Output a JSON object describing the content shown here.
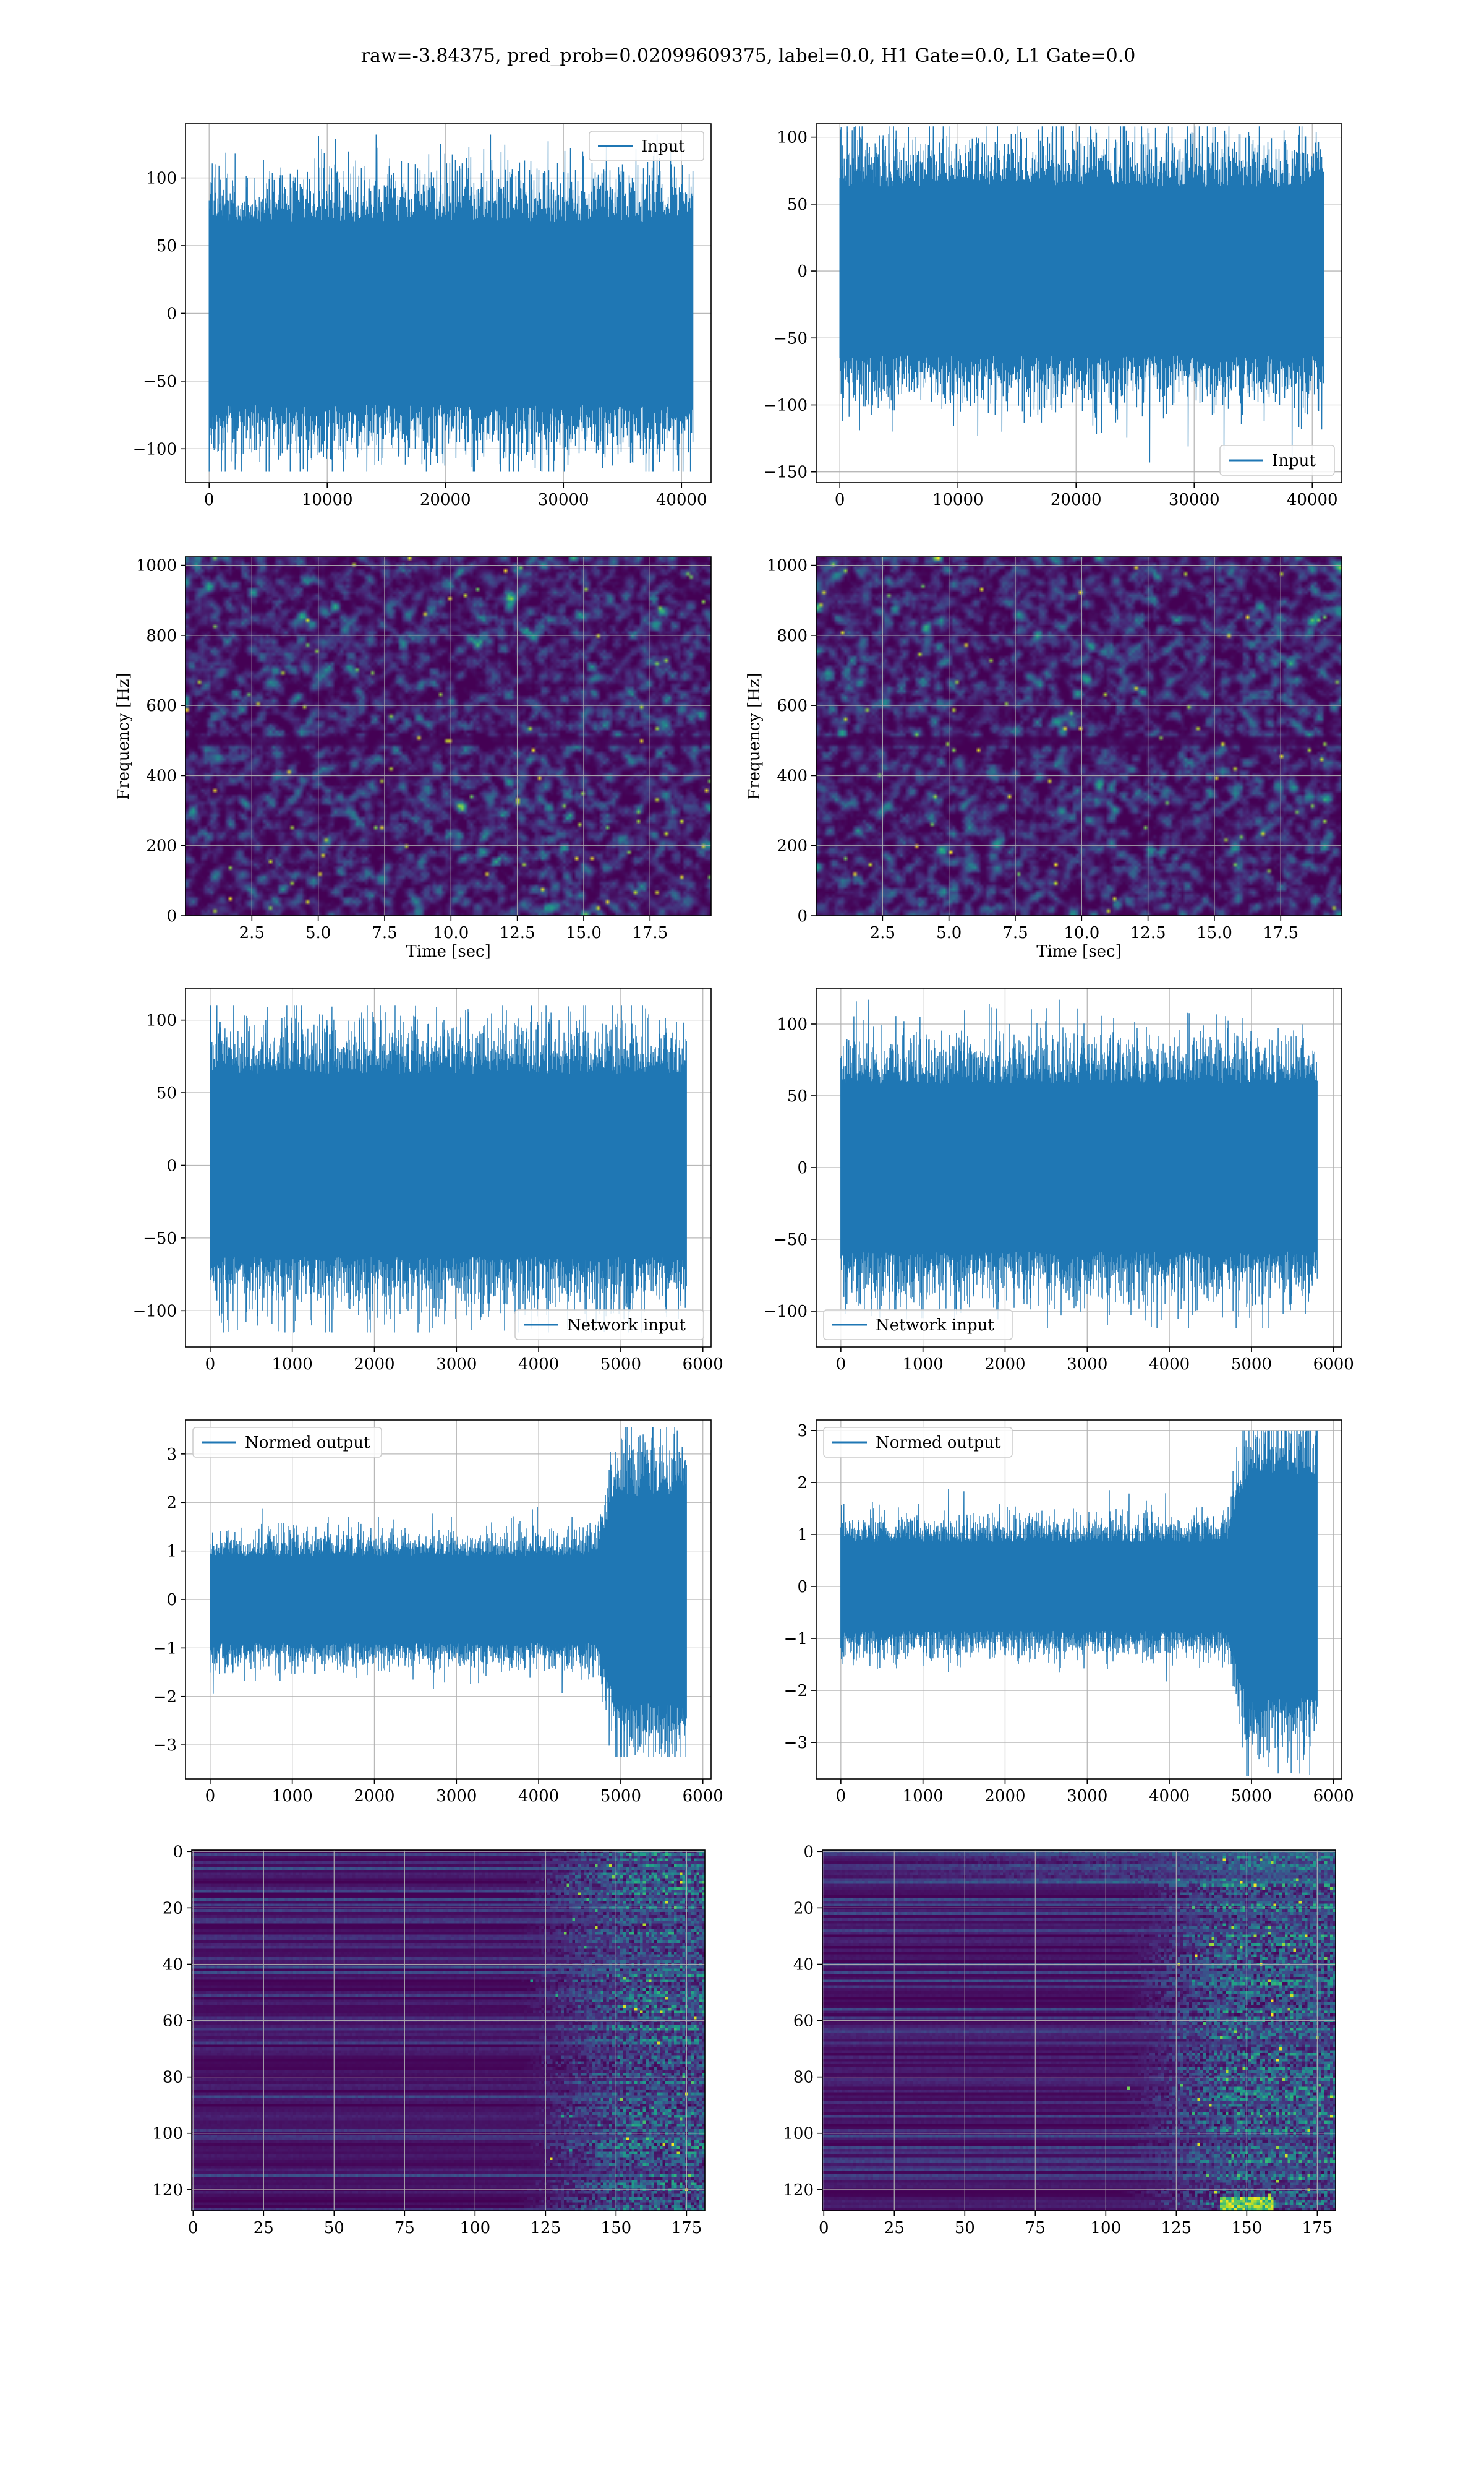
{
  "figure": {
    "suptitle": "raw=-3.84375, pred_prob=0.02099609375, label=0.0, H1 Gate=0.0, L1 Gate=0.0"
  },
  "colors": {
    "line": "#1f77b4",
    "viridis_low": "#440154",
    "viridis_mid": "#21918c",
    "viridis_high": "#fde725",
    "grid": "#b0b0b0"
  },
  "chart_data": [
    {
      "id": "h1-input",
      "type": "line",
      "series": [
        {
          "name": "Input"
        }
      ],
      "legend": "upper right",
      "grid": true,
      "xlim": [
        -2000,
        42500
      ],
      "ylim": [
        -125,
        140
      ],
      "xticks": [
        0,
        10000,
        20000,
        30000,
        40000
      ],
      "xticklabels": [
        "0",
        "10000",
        "20000",
        "30000",
        "40000"
      ],
      "yticks": [
        -100,
        -50,
        0,
        50,
        100
      ],
      "yticklabels": [
        "−100",
        "−50",
        "0",
        "50",
        "100"
      ],
      "n_samples": 40960,
      "noise_sigma": 30,
      "peak_max": 132,
      "peak_min": -117
    },
    {
      "id": "l1-input",
      "type": "line",
      "series": [
        {
          "name": "Input"
        }
      ],
      "legend": "lower right",
      "grid": true,
      "xlim": [
        -2000,
        42500
      ],
      "ylim": [
        -158,
        110
      ],
      "xticks": [
        0,
        10000,
        20000,
        30000,
        40000
      ],
      "xticklabels": [
        "0",
        "10000",
        "20000",
        "30000",
        "40000"
      ],
      "yticks": [
        -150,
        -100,
        -50,
        0,
        50,
        100
      ],
      "yticklabels": [
        "−150",
        "−100",
        "−50",
        "0",
        "50",
        "100"
      ],
      "n_samples": 40960,
      "noise_sigma": 28,
      "peak_max": 108,
      "peak_min": -143
    },
    {
      "id": "h1-spectrogram",
      "type": "heatmap",
      "grid": true,
      "xlabel": "Time [sec]",
      "ylabel": "Frequency [Hz]",
      "xlim": [
        0,
        19.8
      ],
      "ylim": [
        0,
        1024
      ],
      "xticks": [
        2.5,
        5.0,
        7.5,
        10.0,
        12.5,
        15.0,
        17.5
      ],
      "xticklabels": [
        "2.5",
        "5.0",
        "7.5",
        "10.0",
        "12.5",
        "15.0",
        "17.5"
      ],
      "yticks": [
        0,
        200,
        400,
        600,
        800,
        1000
      ],
      "yticklabels": [
        "0",
        "200",
        "400",
        "600",
        "800",
        "1000"
      ],
      "dark_band_hz": 500
    },
    {
      "id": "l1-spectrogram",
      "type": "heatmap",
      "grid": true,
      "xlabel": "Time [sec]",
      "ylabel": "Frequency [Hz]",
      "xlim": [
        0,
        19.8
      ],
      "ylim": [
        0,
        1024
      ],
      "xticks": [
        2.5,
        5.0,
        7.5,
        10.0,
        12.5,
        15.0,
        17.5
      ],
      "xticklabels": [
        "2.5",
        "5.0",
        "7.5",
        "10.0",
        "12.5",
        "15.0",
        "17.5"
      ],
      "yticks": [
        0,
        200,
        400,
        600,
        800,
        1000
      ],
      "yticklabels": [
        "0",
        "200",
        "400",
        "600",
        "800",
        "1000"
      ],
      "dark_band_hz": 500
    },
    {
      "id": "h1-network-input",
      "type": "line",
      "series": [
        {
          "name": "Network input"
        }
      ],
      "legend": "lower right",
      "grid": true,
      "xlim": [
        -300,
        6100
      ],
      "ylim": [
        -125,
        122
      ],
      "xticks": [
        0,
        1000,
        2000,
        3000,
        4000,
        5000,
        6000
      ],
      "xticklabels": [
        "0",
        "1000",
        "2000",
        "3000",
        "4000",
        "5000",
        "6000"
      ],
      "yticks": [
        -100,
        -50,
        0,
        50,
        100
      ],
      "yticklabels": [
        "−100",
        "−50",
        "0",
        "50",
        "100"
      ],
      "n_samples": 5800,
      "noise_sigma": 28,
      "peak_max": 110,
      "peak_min": -115
    },
    {
      "id": "l1-network-input",
      "type": "line",
      "series": [
        {
          "name": "Network input"
        }
      ],
      "legend": "lower left",
      "grid": true,
      "xlim": [
        -300,
        6100
      ],
      "ylim": [
        -125,
        125
      ],
      "xticks": [
        0,
        1000,
        2000,
        3000,
        4000,
        5000,
        6000
      ],
      "xticklabels": [
        "0",
        "1000",
        "2000",
        "3000",
        "4000",
        "5000",
        "6000"
      ],
      "yticks": [
        -100,
        -50,
        0,
        50,
        100
      ],
      "yticklabels": [
        "−100",
        "−50",
        "0",
        "50",
        "100"
      ],
      "n_samples": 5800,
      "noise_sigma": 26,
      "peak_max": 117,
      "peak_min": -112
    },
    {
      "id": "h1-normed-output",
      "type": "line",
      "series": [
        {
          "name": "Normed output"
        }
      ],
      "legend": "upper left",
      "grid": true,
      "xlim": [
        -300,
        6100
      ],
      "ylim": [
        -3.7,
        3.7
      ],
      "xticks": [
        0,
        1000,
        2000,
        3000,
        4000,
        5000,
        6000
      ],
      "xticklabels": [
        "0",
        "1000",
        "2000",
        "3000",
        "4000",
        "5000",
        "6000"
      ],
      "yticks": [
        -3,
        -2,
        -1,
        0,
        1,
        2,
        3
      ],
      "yticklabels": [
        "−3",
        "−2",
        "−1",
        "0",
        "1",
        "2",
        "3"
      ],
      "n_samples": 5800,
      "noise_sigma": 0.4,
      "burst_start": 4700,
      "burst_sigma": 0.95,
      "peak_max": 3.55,
      "peak_min": -3.25
    },
    {
      "id": "l1-normed-output",
      "type": "line",
      "series": [
        {
          "name": "Normed output"
        }
      ],
      "legend": "upper left",
      "grid": true,
      "xlim": [
        -300,
        6100
      ],
      "ylim": [
        -3.7,
        3.2
      ],
      "xticks": [
        0,
        1000,
        2000,
        3000,
        4000,
        5000,
        6000
      ],
      "xticklabels": [
        "0",
        "1000",
        "2000",
        "3000",
        "4000",
        "5000",
        "6000"
      ],
      "yticks": [
        -3,
        -2,
        -1,
        0,
        1,
        2,
        3
      ],
      "yticklabels": [
        "−3",
        "−2",
        "−1",
        "0",
        "1",
        "2",
        "3"
      ],
      "n_samples": 5800,
      "noise_sigma": 0.38,
      "burst_start": 4700,
      "burst_sigma": 0.95,
      "peak_max": 3.0,
      "peak_min": -3.65
    },
    {
      "id": "h1-feature-map",
      "type": "heatmap",
      "grid": true,
      "xlim": [
        -0.5,
        181.5
      ],
      "ylim": [
        127.5,
        -0.5
      ],
      "xticks": [
        0,
        25,
        50,
        75,
        100,
        125,
        150,
        175
      ],
      "xticklabels": [
        "0",
        "25",
        "50",
        "75",
        "100",
        "125",
        "150",
        "175"
      ],
      "yticks": [
        0,
        20,
        40,
        60,
        80,
        100,
        120
      ],
      "yticklabels": [
        "0",
        "20",
        "40",
        "60",
        "80",
        "100",
        "120"
      ],
      "n_cols": 182,
      "n_rows": 128,
      "activity_start": 140
    },
    {
      "id": "l1-feature-map",
      "type": "heatmap",
      "grid": true,
      "xlim": [
        -0.5,
        181.5
      ],
      "ylim": [
        127.5,
        -0.5
      ],
      "xticks": [
        0,
        25,
        50,
        75,
        100,
        125,
        150,
        175
      ],
      "xticklabels": [
        "0",
        "25",
        "50",
        "75",
        "100",
        "125",
        "150",
        "175"
      ],
      "yticks": [
        0,
        20,
        40,
        60,
        80,
        100,
        120
      ],
      "yticklabels": [
        "0",
        "20",
        "40",
        "60",
        "80",
        "100",
        "120"
      ],
      "n_cols": 182,
      "n_rows": 128,
      "activity_start": 130
    }
  ]
}
